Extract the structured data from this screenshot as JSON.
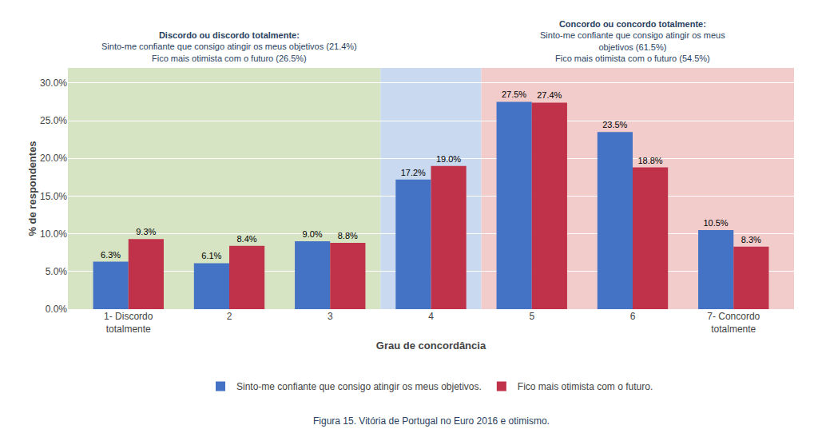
{
  "chart_data": {
    "type": "bar",
    "categories": [
      "1- Discordo\ntotalmente",
      "2",
      "3",
      "4",
      "5",
      "6",
      "7- Concordo\ntotalmente"
    ],
    "series": [
      {
        "name": "Sinto-me confiante que consigo atingir os meus objetivos.",
        "color": "#4472C4",
        "values": [
          6.3,
          6.1,
          9.0,
          17.2,
          27.5,
          23.5,
          10.5
        ],
        "value_labels": [
          "6.3%",
          "6.1%",
          "9.0%",
          "17.2%",
          "27.5%",
          "23.5%",
          "10.5%"
        ]
      },
      {
        "name": "Fico mais otimista com o futuro.",
        "color": "#C0314A",
        "values": [
          9.3,
          8.4,
          8.8,
          19.0,
          27.4,
          18.8,
          8.3
        ],
        "value_labels": [
          "9.3%",
          "8.4%",
          "8.8%",
          "19.0%",
          "27.4%",
          "18.8%",
          "8.3%"
        ]
      }
    ],
    "xlabel": "Grau de concordância",
    "ylabel": "% de respondentes",
    "ylim": [
      0,
      32
    ],
    "yticks": [
      {
        "value": 0.0,
        "label": "0.0%"
      },
      {
        "value": 5.0,
        "label": "5.0%"
      },
      {
        "value": 10.0,
        "label": "10.0%"
      },
      {
        "value": 15.0,
        "label": "15.0%"
      },
      {
        "value": 20.0,
        "label": "20.0%"
      },
      {
        "value": 25.0,
        "label": "25.0%"
      },
      {
        "value": 30.0,
        "label": "30.0%"
      }
    ],
    "grid": true,
    "data_labels": true,
    "legend": "bottom",
    "regions": [
      {
        "from": "1- Discordo\ntotalmente",
        "to": "3",
        "color": "#D6E4C3"
      },
      {
        "from": "4",
        "to": "4",
        "color": "#C9D9F0"
      },
      {
        "from": "5",
        "to": "7- Concordo\ntotalmente",
        "color": "#F2CCCB"
      }
    ],
    "annotations": [
      {
        "category": "2",
        "title": "Discordo ou discordo totalmente:",
        "lines": [
          "Sinto-me confiante que consigo atingir os meus objetivos (21.4%)",
          "Fico mais otimista com o futuro (26.5%)"
        ]
      },
      {
        "category": "6",
        "title": "Concordo ou concordo totalmente:",
        "lines": [
          "Sinto-me confiante que consigo atingir os meus\nobjetivos (61.5%)",
          "Fico mais otimista com o futuro (54.5%)"
        ]
      }
    ],
    "caption": "Figura 15. Vitória de Portugal no Euro 2016 e otimismo."
  }
}
